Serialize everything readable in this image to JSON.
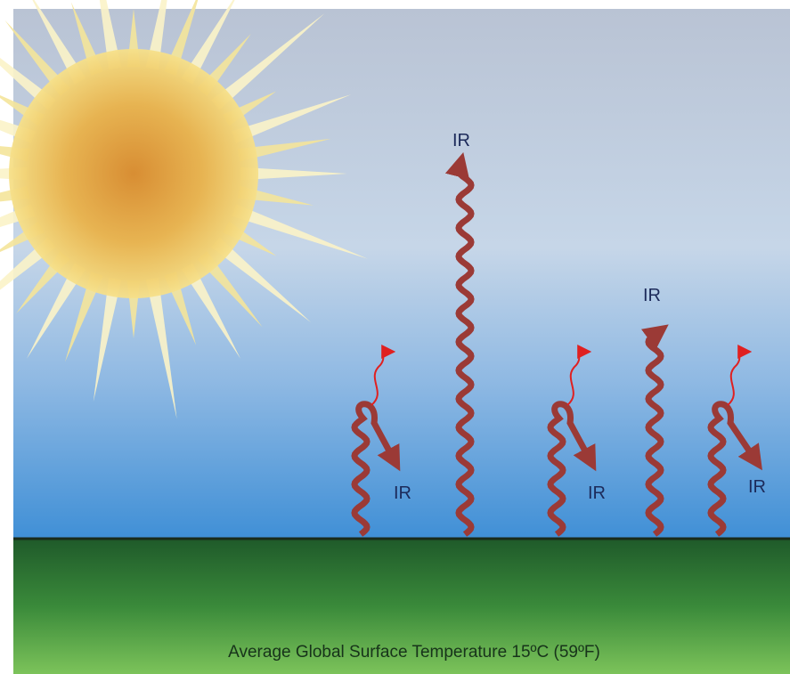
{
  "ir_labels": [
    "IR",
    "IR",
    "IR",
    "IR",
    "IR"
  ],
  "caption": "Average Global Surface Temperature 15ºC (59ºF)"
}
